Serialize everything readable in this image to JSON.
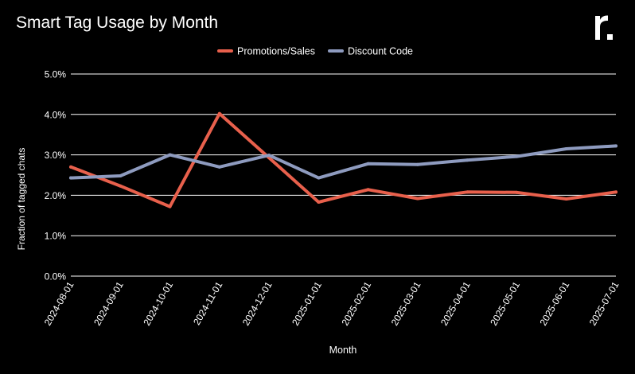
{
  "header": {
    "title": "Smart Tag Usage by Month",
    "logo_text": "r."
  },
  "colors": {
    "background": "#000000",
    "promotions": "#E8604C",
    "discount": "#8E9BBF",
    "grid": "#FFFFFF",
    "text": "#FFFFFF"
  },
  "chart_data": {
    "type": "line",
    "title": "Smart Tag Usage by Month",
    "xlabel": "Month",
    "ylabel": "Fraction of tagged chats",
    "ylim": [
      0,
      0.05
    ],
    "yticks": [
      0,
      0.01,
      0.02,
      0.03,
      0.04,
      0.05
    ],
    "ytick_labels": [
      "0.0%",
      "1.0%",
      "2.0%",
      "3.0%",
      "4.0%",
      "5.0%"
    ],
    "grid": true,
    "legend_position": "top-center",
    "x": [
      "2024-08-01",
      "2024-09-01",
      "2024-10-01",
      "2024-11-01",
      "2024-12-01",
      "2025-01-01",
      "2025-02-01",
      "2025-03-01",
      "2025-04-01",
      "2025-05-01",
      "2025-06-01",
      "2025-07-01"
    ],
    "series": [
      {
        "name": "Promotions/Sales",
        "color": "#E8604C",
        "values": [
          0.027,
          0.0223,
          0.0172,
          0.0402,
          0.0293,
          0.0183,
          0.0214,
          0.0192,
          0.0208,
          0.0207,
          0.0191,
          0.0208
        ]
      },
      {
        "name": "Discount Code",
        "color": "#8E9BBF",
        "values": [
          0.0243,
          0.0248,
          0.03,
          0.027,
          0.0299,
          0.0243,
          0.0278,
          0.0276,
          0.0287,
          0.0296,
          0.0315,
          0.0322
        ]
      }
    ]
  }
}
